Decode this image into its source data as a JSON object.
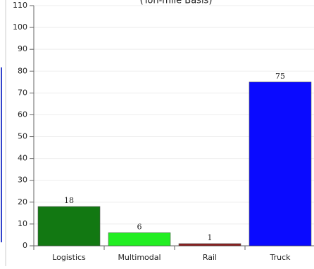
{
  "chart_data": {
    "type": "bar",
    "title": "(Ton-mile Basis)",
    "categories": [
      "Logistics",
      "Multimodal",
      "Rail",
      "Truck"
    ],
    "values": [
      18,
      6,
      1,
      75
    ],
    "colors": [
      "#127812",
      "#22ee22",
      "#8b1e1e",
      "#0a0aff"
    ],
    "ylim": [
      0,
      110
    ],
    "yticks": [
      0,
      10,
      20,
      30,
      40,
      50,
      60,
      70,
      80,
      90,
      100,
      110
    ],
    "grid": true
  }
}
